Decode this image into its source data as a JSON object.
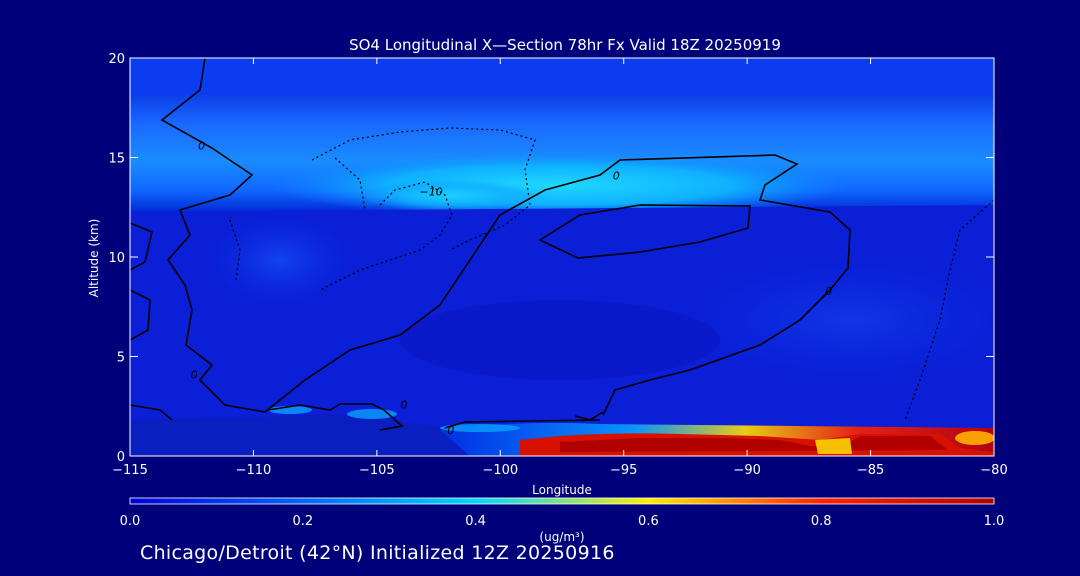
{
  "chart_data": {
    "type": "heatmap",
    "title": "SO4 Longitudinal X—Section 78hr  Fx Valid 18Z 20250919",
    "xlabel": "Longitude",
    "ylabel": "Altitude (km)",
    "xlim": [
      -115,
      -80
    ],
    "ylim": [
      0,
      20
    ],
    "x_ticks": [
      -115,
      -110,
      -105,
      -100,
      -95,
      -90,
      -85,
      -80
    ],
    "x_tick_labels": [
      "−115",
      "−110",
      "−105",
      "−100",
      "−95",
      "−90",
      "−85",
      "−80"
    ],
    "y_ticks": [
      0,
      5,
      10,
      15,
      20
    ],
    "y_tick_labels": [
      "0",
      "5",
      "10",
      "15",
      "20"
    ],
    "colorbar": {
      "min": 0.0,
      "max": 1.0,
      "ticks": [
        0.0,
        0.2,
        0.4,
        0.6,
        0.8,
        1.0
      ],
      "tick_labels": [
        "0.0",
        "0.2",
        "0.4",
        "0.6",
        "0.8",
        "1.0"
      ],
      "units_label": "(ug/m³)"
    },
    "contour_labels": [
      {
        "text": "0",
        "lon": -112.1,
        "alt": 15.6
      },
      {
        "text": "0",
        "lon": -95.3,
        "alt": 14.1
      },
      {
        "text": "−10",
        "lon": -102.8,
        "alt": 13.3
      },
      {
        "text": "0",
        "lon": -86.7,
        "alt": 8.3
      },
      {
        "text": "0",
        "lon": -112.4,
        "alt": 4.1
      },
      {
        "text": "0",
        "lon": -103.9,
        "alt": 2.6
      },
      {
        "text": "0",
        "lon": -102.0,
        "alt": 1.3
      }
    ],
    "concentration_features": [
      {
        "feature": "upper layer",
        "lon_range": [
          -115,
          -80
        ],
        "alt_range": [
          12.5,
          16.5
        ],
        "value": 0.25
      },
      {
        "feature": "upper maximum",
        "lon_range": [
          -102,
          -87
        ],
        "alt_range": [
          12.8,
          14.8
        ],
        "value": 0.4
      },
      {
        "feature": "boundary layer maximum",
        "lon_range": [
          -96,
          -80
        ],
        "alt_range": [
          0.2,
          1.4
        ],
        "value": 1.0
      }
    ],
    "caption": "Chicago/Detroit (42°N) Initialized 12Z 20250916"
  },
  "colors": {
    "background": "#00007a",
    "colormap": [
      "#0000d8",
      "#0066ff",
      "#00d7ff",
      "#ffee00",
      "#ff2200",
      "#b00000"
    ]
  }
}
